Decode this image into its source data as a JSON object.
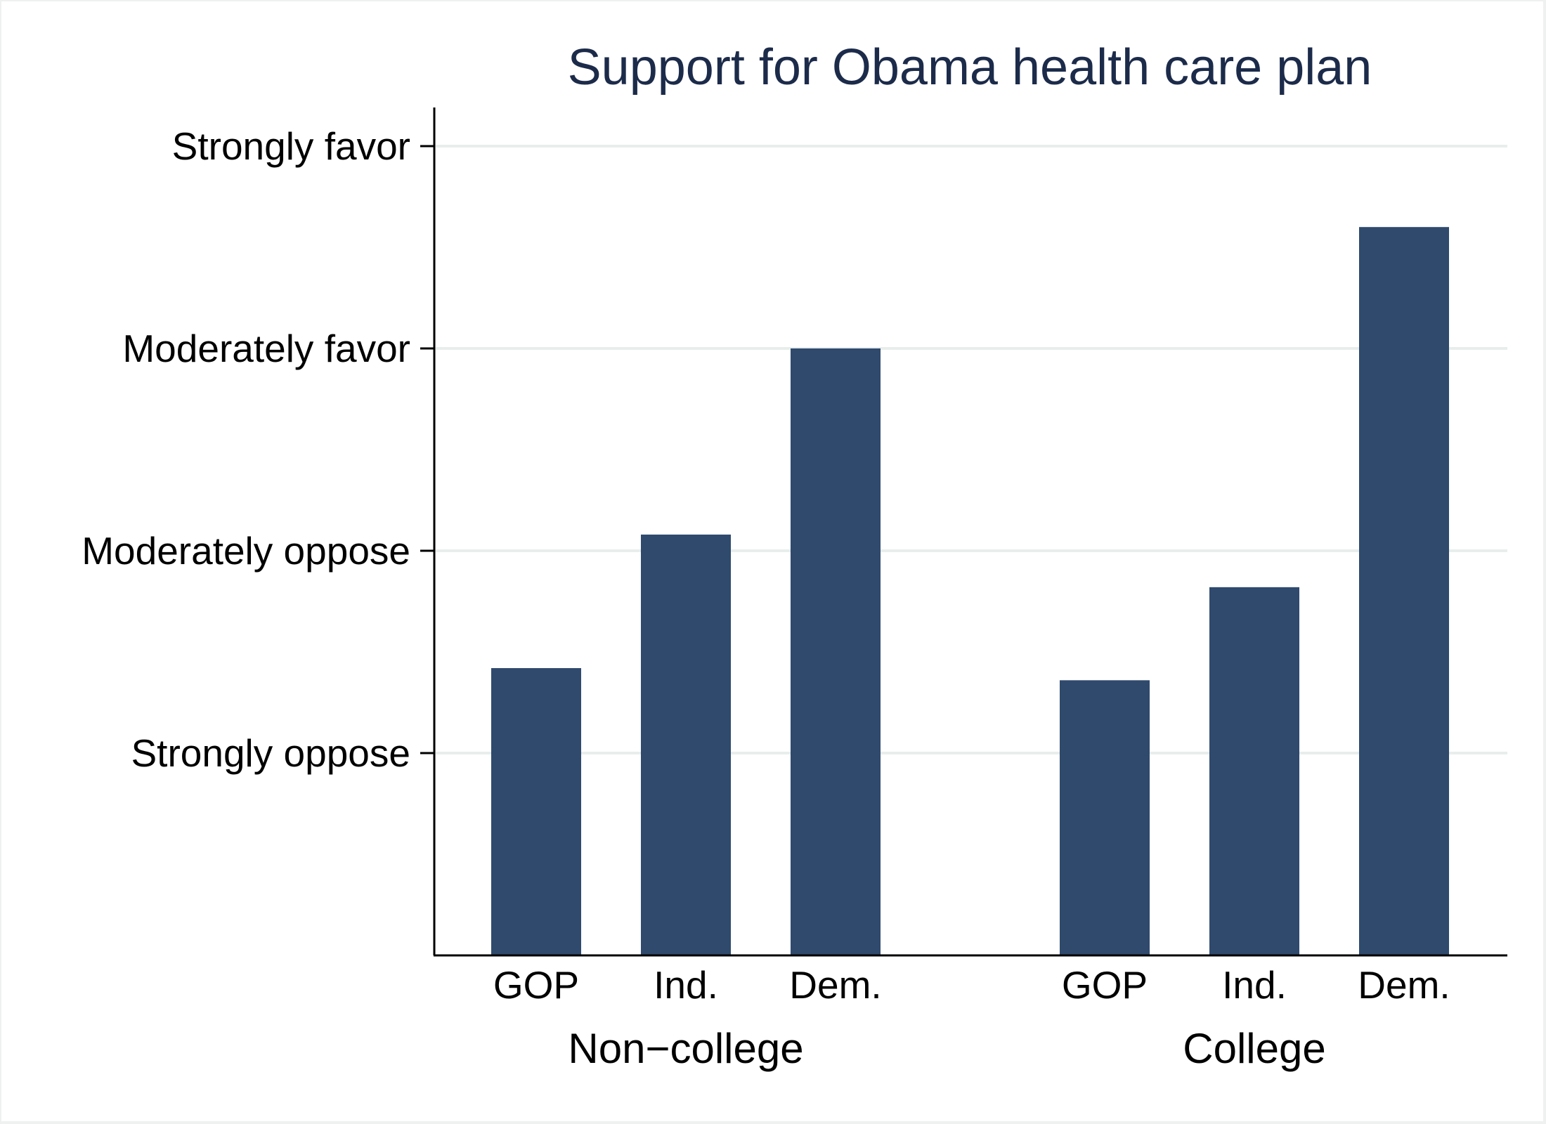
{
  "chart_data": {
    "type": "bar",
    "title": "Support for Obama health care plan",
    "xlabel": "",
    "ylabel": "",
    "ylim": [
      0,
      4
    ],
    "ytick_values": [
      1,
      2,
      3,
      4
    ],
    "ytick_labels": [
      "Strongly oppose",
      "Moderately oppose",
      "Moderately favor",
      "Strongly favor"
    ],
    "grid": true,
    "bar_color": "#2f4a6d",
    "groups": [
      {
        "label": "Non−college",
        "categories": [
          "GOP",
          "Ind.",
          "Dem."
        ],
        "values": [
          1.42,
          2.08,
          3.0
        ]
      },
      {
        "label": "College",
        "categories": [
          "GOP",
          "Ind.",
          "Dem."
        ],
        "values": [
          1.36,
          1.82,
          3.6
        ]
      }
    ]
  }
}
